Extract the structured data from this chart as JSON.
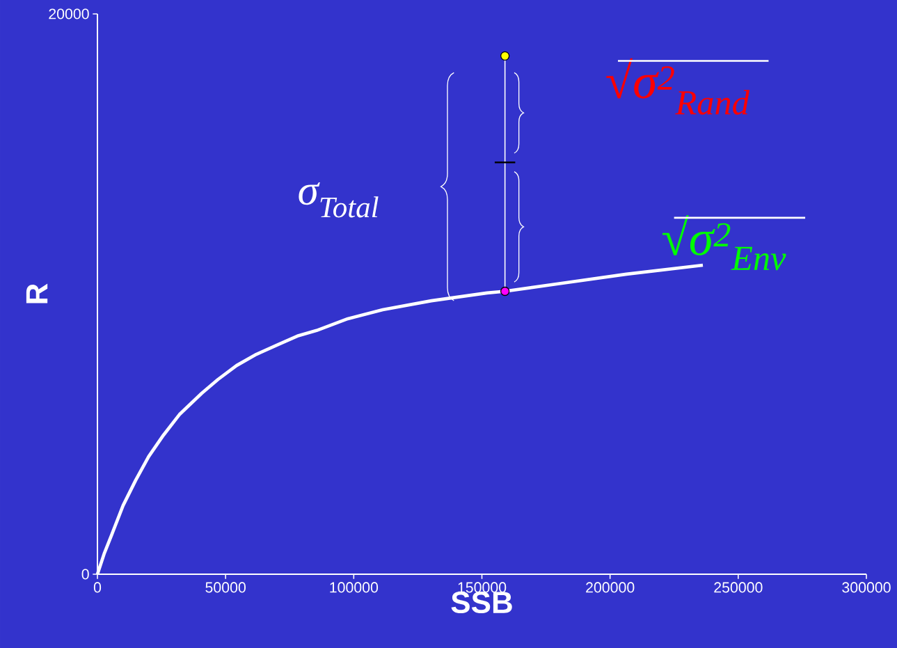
{
  "chart_data": {
    "type": "line",
    "xlabel": "SSB",
    "ylabel": "R",
    "xlim": [
      0,
      300000
    ],
    "ylim": [
      0,
      20000
    ],
    "xticks": [
      0,
      50000,
      100000,
      150000,
      200000,
      250000,
      300000
    ],
    "yticks": [
      0,
      20000
    ],
    "grid": false,
    "series": [
      {
        "color": "#ffffff",
        "x": [
          0,
          2700,
          5400,
          10000,
          14900,
          20000,
          25800,
          32000,
          40700,
          47000,
          54300,
          62000,
          70600,
          78000,
          85500,
          97700,
          111300,
          130300,
          152000,
          159000,
          179200,
          206400,
          236200
        ],
        "values": [
          0,
          750,
          1370,
          2450,
          3350,
          4200,
          4970,
          5700,
          6460,
          6950,
          7450,
          7850,
          8200,
          8500,
          8700,
          9120,
          9440,
          9760,
          10040,
          10100,
          10360,
          10710,
          11030
        ]
      },
      {
        "color": "#ffffff",
        "x": [
          159000,
          159000
        ],
        "values": [
          18500,
          10100
        ]
      },
      {
        "color": "#000000",
        "x": [
          155000,
          163000
        ],
        "values": [
          14700,
          14700
        ]
      },
      {
        "type": "scatter",
        "marker": "circle",
        "color": "#ffff00",
        "x": [
          159000
        ],
        "values": [
          18500
        ]
      },
      {
        "type": "scatter",
        "marker": "circle",
        "color": "#ff00ff",
        "x": [
          159000
        ],
        "values": [
          10100
        ]
      }
    ],
    "annotations": [
      "σ$_{Total}$",
      "√σ$^{2}$$_{Rand}$",
      "√σ$^{2}$$_{Env}$"
    ]
  }
}
